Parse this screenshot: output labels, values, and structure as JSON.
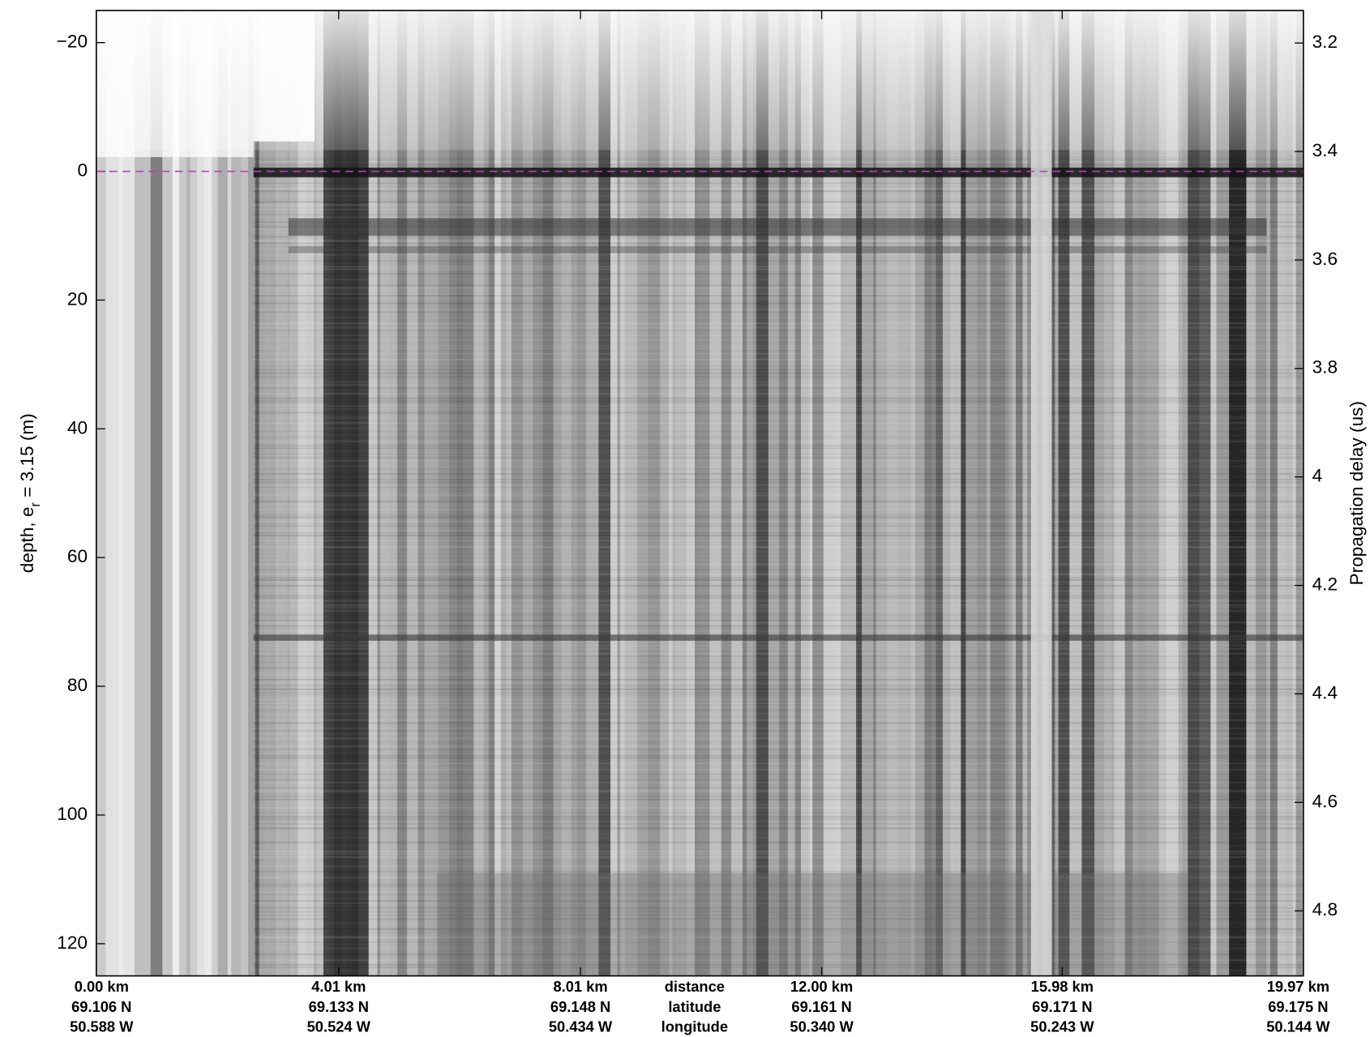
{
  "chart_data": {
    "type": "radargram",
    "ylabel": {
      "text": "depth, e",
      "subscript": "r",
      "rest": " = 3.15 (m)"
    },
    "y2label": "Propagation delay (us)",
    "xlim": [
      0,
      19.97
    ],
    "xticks": [
      {
        "value": 0,
        "label": "0.00 km"
      },
      {
        "value": 4.01,
        "label": "4.01 km"
      },
      {
        "value": 8.01,
        "label": "8.01 km"
      },
      {
        "value": 12.0,
        "label": "12.00 km"
      },
      {
        "value": 15.98,
        "label": "15.98 km"
      },
      {
        "value": 19.97,
        "label": "19.97 km"
      }
    ],
    "xtick_latitudes": [
      "69.106 N",
      "69.133 N",
      "69.148 N",
      "69.161 N",
      "69.171 N",
      "69.175 N"
    ],
    "xtick_longitudes": [
      "50.588 W",
      "50.524 W",
      "50.434 W",
      "50.340 W",
      "50.243 W",
      "50.144 W"
    ],
    "xtick_row_titles": [
      "distance",
      "latitude",
      "longitude"
    ],
    "ylim": [
      -25,
      125
    ],
    "yticks": [
      {
        "value": -20,
        "label": "−20"
      },
      0,
      20,
      40,
      60,
      80,
      100,
      120
    ],
    "y2lim": [
      3.14,
      4.92
    ],
    "y2ticks": [
      3.2,
      3.4,
      3.6,
      3.8,
      4,
      4.2,
      4.4,
      4.6,
      4.8
    ],
    "surface_line": {
      "value": 0,
      "color": "#d030d0"
    },
    "colormap": "gray"
  }
}
